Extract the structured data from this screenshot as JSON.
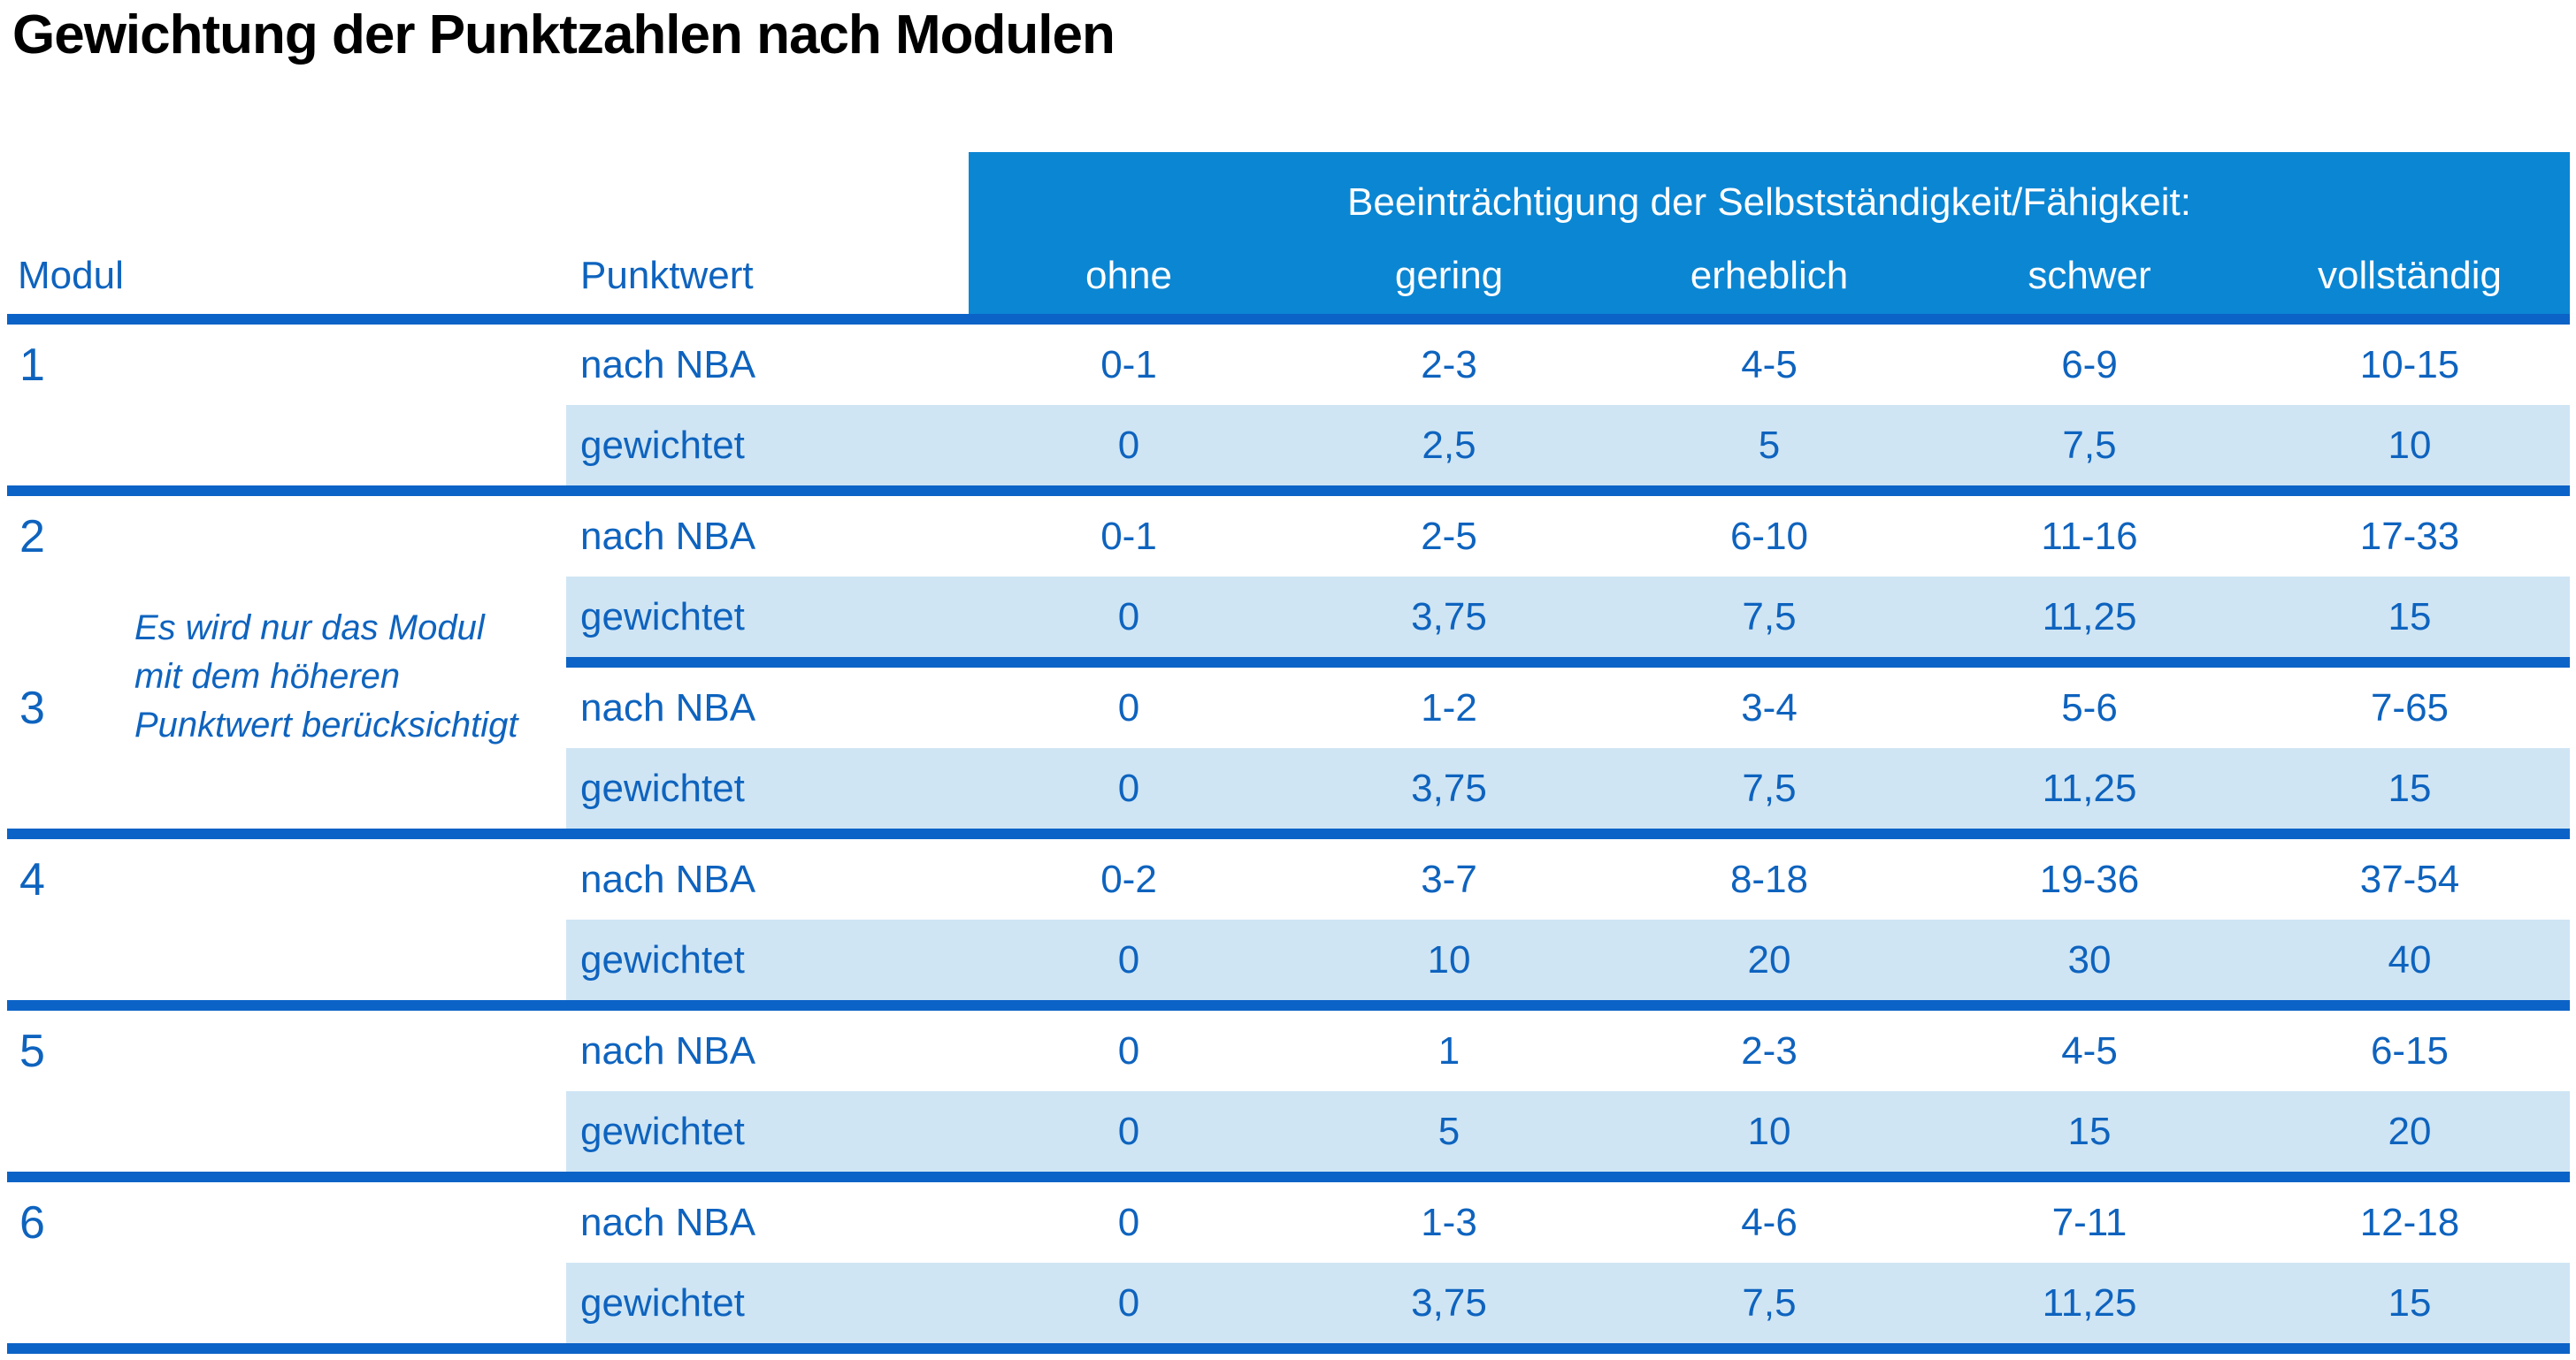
{
  "title": "Gewichtung der Punktzahlen nach Modulen",
  "table": {
    "col_modul": "Modul",
    "col_punktwert": "Punktwert",
    "group_header": "Beeinträchtigung der Selbstständigkeit/Fähigkeit:",
    "severity_labels": [
      "ohne",
      "gering",
      "erheblich",
      "schwer",
      "vollständig"
    ],
    "row_labels": {
      "nba": "nach NBA",
      "weighted": "gewichtet"
    },
    "note_lines": [
      "Es wird nur das Modul",
      "mit dem höheren",
      "Punktwert berücksichtigt"
    ],
    "modules": [
      {
        "id": "1",
        "nba": [
          "0-1",
          "2-3",
          "4-5",
          "6-9",
          "10-15"
        ],
        "weighted": [
          "0",
          "2,5",
          "5",
          "7,5",
          "10"
        ]
      },
      {
        "id": "2",
        "nba": [
          "0-1",
          "2-5",
          "6-10",
          "11-16",
          "17-33"
        ],
        "weighted": [
          "0",
          "3,75",
          "7,5",
          "11,25",
          "15"
        ]
      },
      {
        "id": "3",
        "nba": [
          "0",
          "1-2",
          "3-4",
          "5-6",
          "7-65"
        ],
        "weighted": [
          "0",
          "3,75",
          "7,5",
          "11,25",
          "15"
        ]
      },
      {
        "id": "4",
        "nba": [
          "0-2",
          "3-7",
          "8-18",
          "19-36",
          "37-54"
        ],
        "weighted": [
          "0",
          "10",
          "20",
          "30",
          "40"
        ]
      },
      {
        "id": "5",
        "nba": [
          "0",
          "1",
          "2-3",
          "4-5",
          "6-15"
        ],
        "weighted": [
          "0",
          "5",
          "10",
          "15",
          "20"
        ]
      },
      {
        "id": "6",
        "nba": [
          "0",
          "1-3",
          "4-6",
          "7-11",
          "12-18"
        ],
        "weighted": [
          "0",
          "3,75",
          "7,5",
          "11,25",
          "15"
        ]
      }
    ]
  },
  "colors": {
    "header_band": "#0B86D3",
    "divider_line": "#0C63C7",
    "row_highlight": "#CFE5F4",
    "text_blue": "#0E63BE",
    "header_text": "#FFFFFF",
    "title_text": "#000000"
  }
}
